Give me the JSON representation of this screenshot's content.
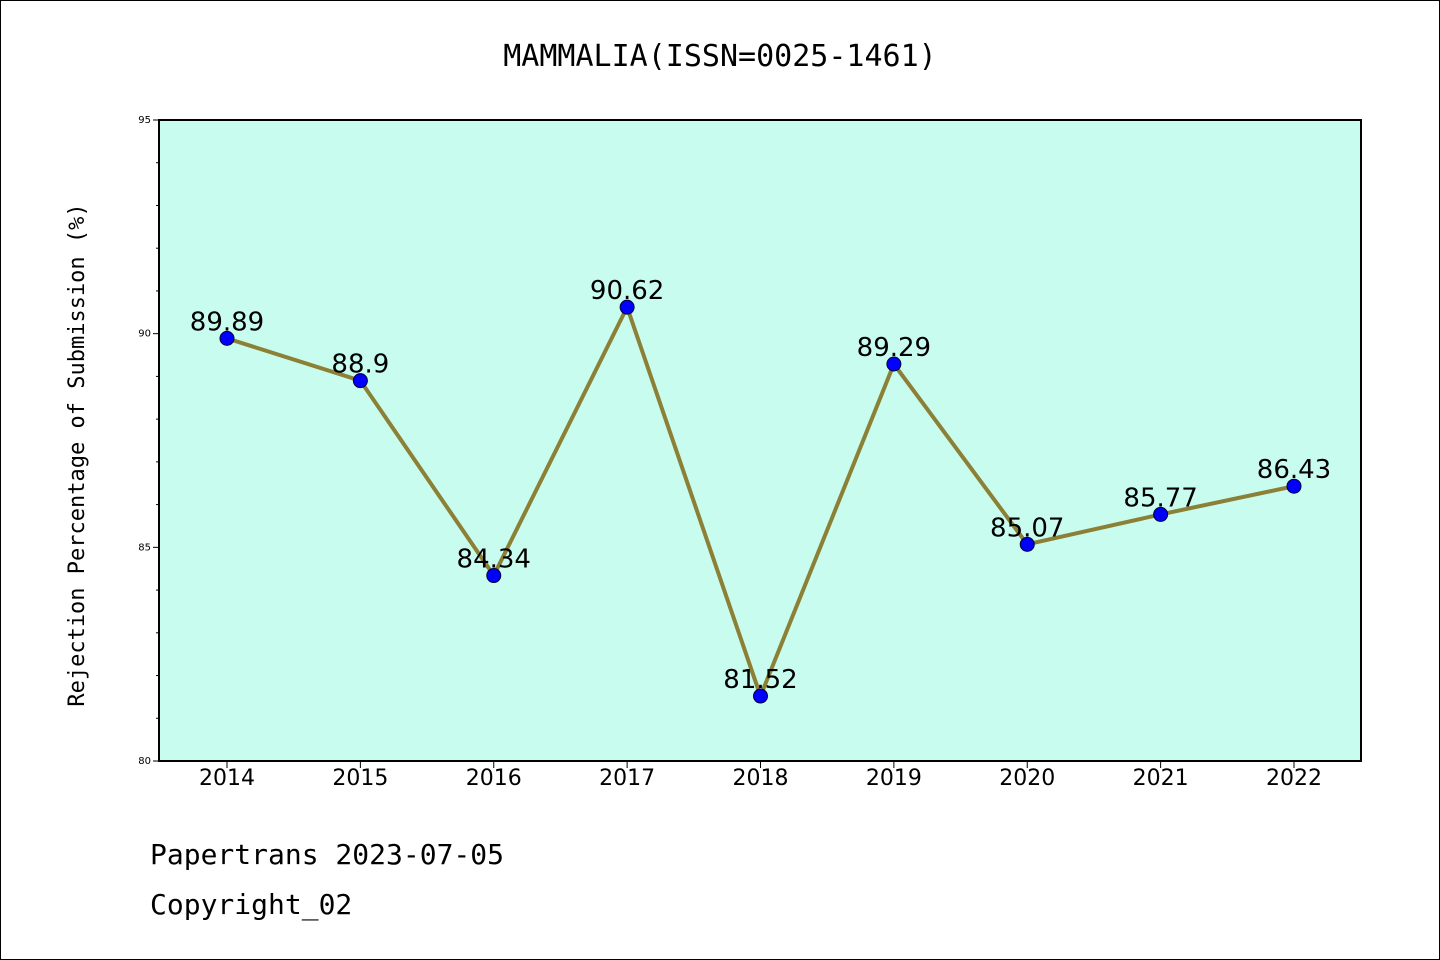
{
  "chart_data": {
    "type": "line",
    "title": "MAMMALIA(ISSN=0025-1461)",
    "xlabel": "",
    "ylabel": "Rejection Percentage of Submission (%)",
    "categories": [
      "2014",
      "2015",
      "2016",
      "2017",
      "2018",
      "2019",
      "2020",
      "2021",
      "2022"
    ],
    "series": [
      {
        "values": [
          89.89,
          88.9,
          84.34,
          90.62,
          81.52,
          89.29,
          85.07,
          85.77,
          86.43
        ],
        "data_labels": [
          "89.89",
          "88.9",
          "84.34",
          "90.62",
          "81.52",
          "89.29",
          "85.07",
          "85.77",
          "86.43"
        ],
        "line_color": "#8b8035",
        "marker_color": "#0000ff"
      }
    ],
    "ylim": [
      80,
      95
    ],
    "yticks": [
      "80",
      "85",
      "90",
      "95"
    ],
    "plot_background": "#c8fcee",
    "grid": false,
    "legend": "none"
  },
  "footer": {
    "line1": "Papertrans 2023-07-05",
    "line2": "Copyright_02"
  }
}
